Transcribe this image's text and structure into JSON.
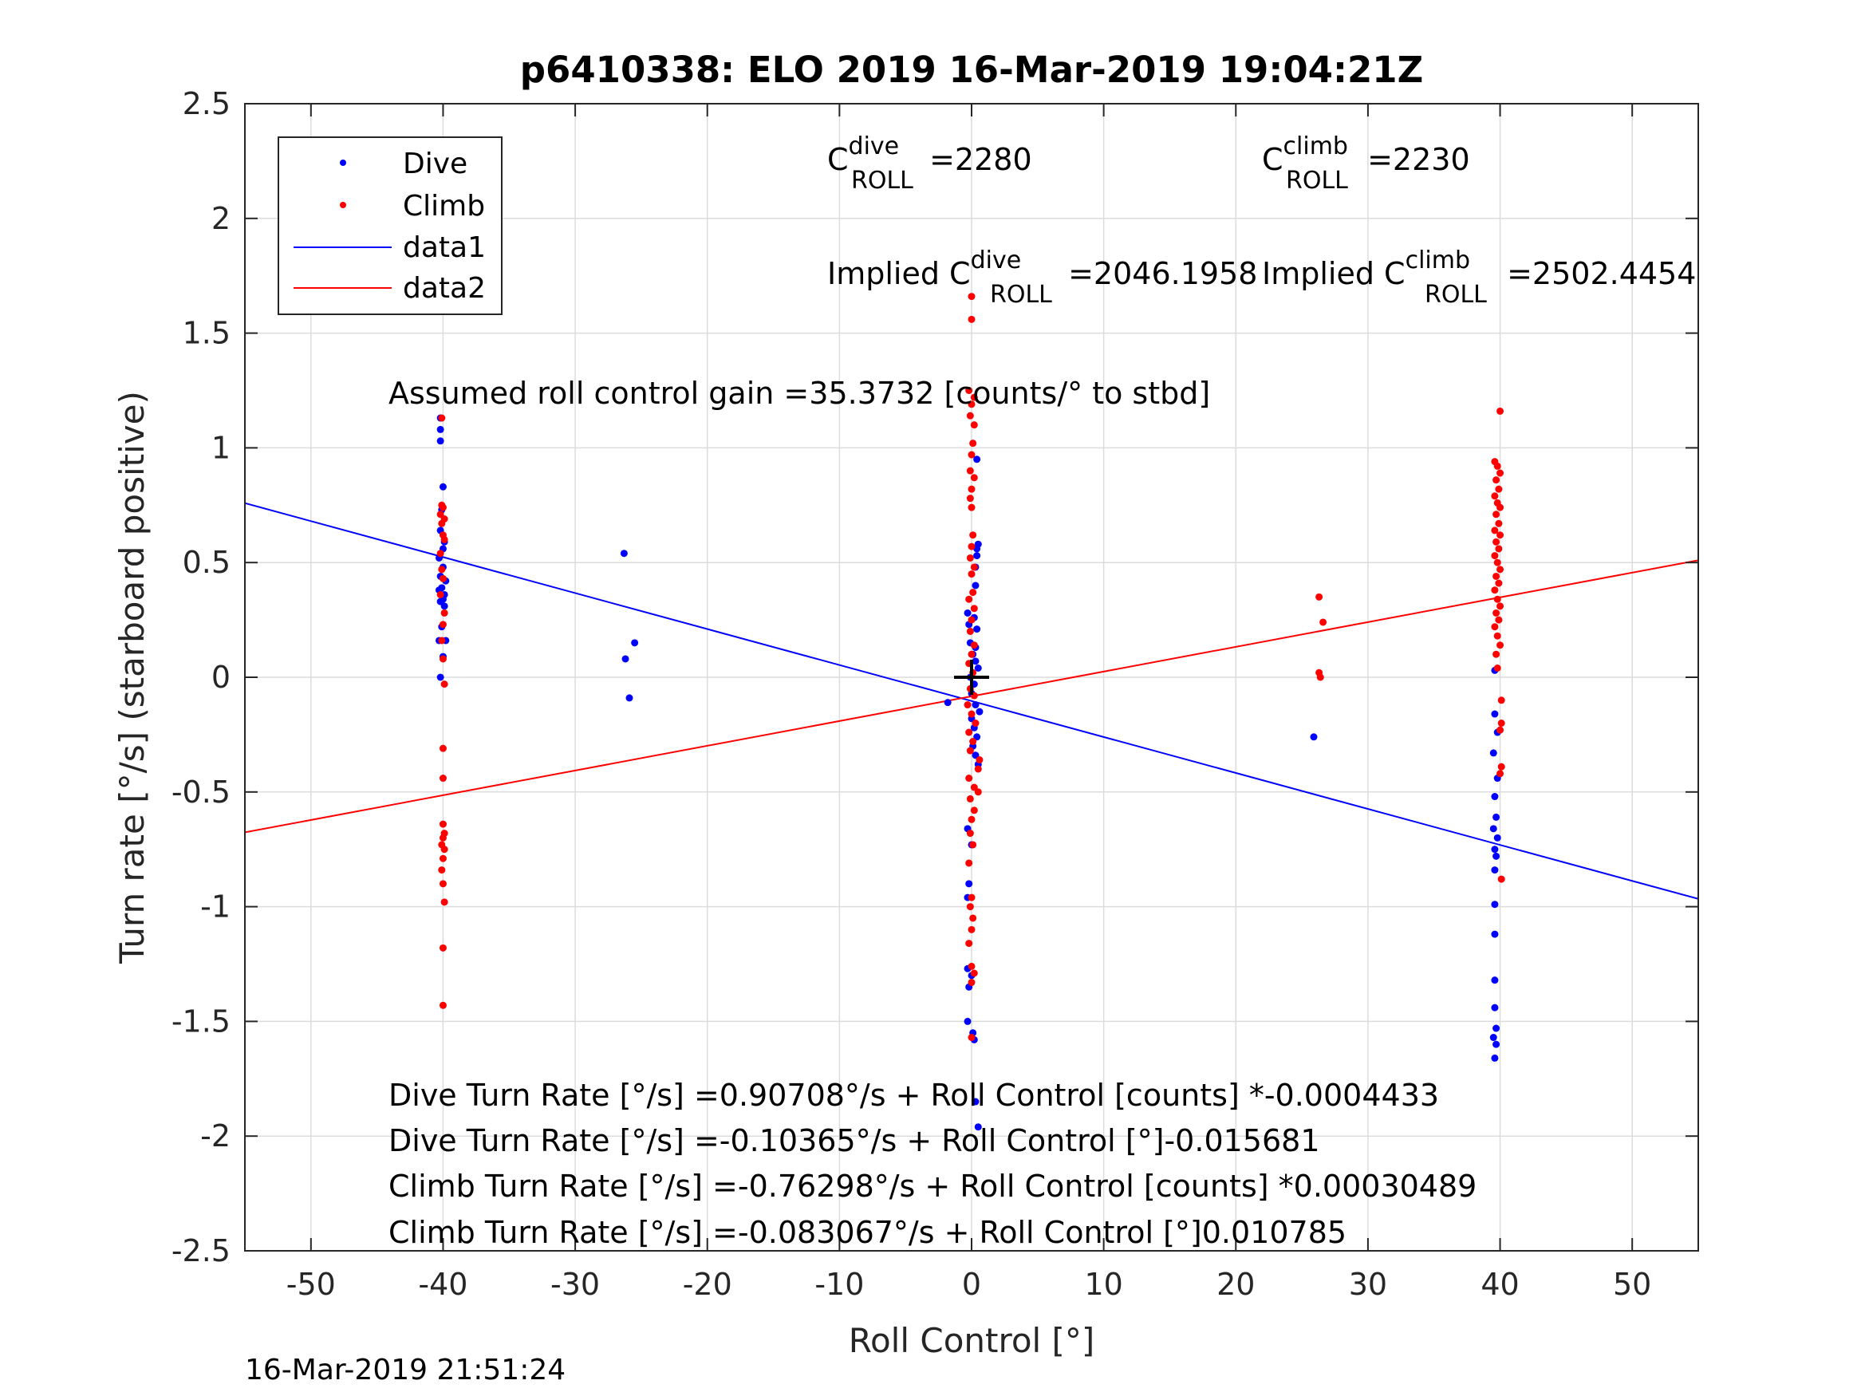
{
  "chart_data": {
    "type": "scatter",
    "title": "p6410338: ELO 2019 16-Mar-2019 19:04:21Z",
    "xlabel": "Roll Control [°]",
    "ylabel": "Turn rate [°/s] (starboard positive)",
    "xlim": [
      -55,
      55
    ],
    "ylim": [
      -2.5,
      2.5
    ],
    "x_ticks": [
      -50,
      -40,
      -30,
      -20,
      -10,
      0,
      10,
      20,
      30,
      40,
      50
    ],
    "y_ticks": [
      -2.5,
      -2,
      -1.5,
      -1,
      -0.5,
      0,
      0.5,
      1,
      1.5,
      2,
      2.5
    ],
    "grid": true,
    "legend_position": "top-left",
    "timestamp": "16-Mar-2019 21:51:24",
    "colors": {
      "dive": "#0000ff",
      "climb": "#ff0000",
      "origin_marker": "#000000",
      "axes": "#262626",
      "grid": "#dcdcdc"
    },
    "series": [
      {
        "name": "Dive",
        "kind": "points",
        "color": "#0000ff",
        "points": [
          [
            -40.2,
            1.13
          ],
          [
            -40.2,
            1.08
          ],
          [
            -40.2,
            1.03
          ],
          [
            -40.0,
            0.83
          ],
          [
            -40.1,
            0.73
          ],
          [
            -40.2,
            0.64
          ],
          [
            -39.9,
            0.59
          ],
          [
            -40.0,
            0.56
          ],
          [
            -40.3,
            0.52
          ],
          [
            -40.0,
            0.48
          ],
          [
            -40.2,
            0.44
          ],
          [
            -39.8,
            0.42
          ],
          [
            -40.1,
            0.39
          ],
          [
            -40.3,
            0.38
          ],
          [
            -39.9,
            0.36
          ],
          [
            -40.0,
            0.34
          ],
          [
            -40.2,
            0.33
          ],
          [
            -39.9,
            0.31
          ],
          [
            -40.1,
            0.22
          ],
          [
            -40.3,
            0.16
          ],
          [
            -39.8,
            0.16
          ],
          [
            -40.0,
            0.09
          ],
          [
            -40.2,
            0.0
          ],
          [
            -26.3,
            0.54
          ],
          [
            -25.5,
            0.15
          ],
          [
            -26.2,
            0.08
          ],
          [
            -25.9,
            -0.09
          ],
          [
            -1.8,
            -0.11
          ],
          [
            -0.3,
            0.28
          ],
          [
            0.2,
            0.26
          ],
          [
            -0.2,
            0.23
          ],
          [
            0.4,
            0.21
          ],
          [
            -0.1,
            0.15
          ],
          [
            0.3,
            0.13
          ],
          [
            0.1,
            0.1
          ],
          [
            0.3,
            0.07
          ],
          [
            0.5,
            0.04
          ],
          [
            -0.1,
            0.0
          ],
          [
            0.2,
            -0.03
          ],
          [
            0.0,
            -0.07
          ],
          [
            0.3,
            -0.12
          ],
          [
            0.6,
            -0.15
          ],
          [
            0.0,
            -0.18
          ],
          [
            0.2,
            -0.22
          ],
          [
            0.4,
            -0.26
          ],
          [
            0.1,
            -0.3
          ],
          [
            0.3,
            -0.34
          ],
          [
            0.5,
            -0.38
          ],
          [
            0.4,
            0.56
          ],
          [
            0.4,
            0.53
          ],
          [
            0.3,
            0.48
          ],
          [
            0.3,
            0.4
          ],
          [
            0.5,
            0.58
          ],
          [
            0.4,
            0.95
          ],
          [
            -0.3,
            -0.66
          ],
          [
            0.0,
            -0.73
          ],
          [
            -0.2,
            -0.9
          ],
          [
            -0.3,
            -0.96
          ],
          [
            -0.3,
            -1.27
          ],
          [
            0.0,
            -1.3
          ],
          [
            -0.2,
            -1.35
          ],
          [
            -0.3,
            -1.5
          ],
          [
            0.1,
            -1.55
          ],
          [
            0.5,
            -1.96
          ],
          [
            0.3,
            -1.85
          ],
          [
            0.2,
            -1.58
          ],
          [
            25.9,
            -0.26
          ],
          [
            39.6,
            0.03
          ],
          [
            39.6,
            -0.16
          ],
          [
            39.8,
            -0.24
          ],
          [
            39.5,
            -0.33
          ],
          [
            39.8,
            -0.44
          ],
          [
            39.6,
            -0.52
          ],
          [
            39.7,
            -0.61
          ],
          [
            39.5,
            -0.66
          ],
          [
            39.8,
            -0.7
          ],
          [
            39.6,
            -0.75
          ],
          [
            39.7,
            -0.78
          ],
          [
            39.6,
            -0.84
          ],
          [
            39.6,
            -0.99
          ],
          [
            39.6,
            -1.12
          ],
          [
            39.6,
            -1.32
          ],
          [
            39.6,
            -1.44
          ],
          [
            39.7,
            -1.53
          ],
          [
            39.5,
            -1.57
          ],
          [
            39.7,
            -1.6
          ],
          [
            39.6,
            -1.66
          ]
        ]
      },
      {
        "name": "Climb",
        "kind": "points",
        "color": "#ff0000",
        "points": [
          [
            -40.1,
            1.13
          ],
          [
            -40.1,
            0.75
          ],
          [
            -40.0,
            0.74
          ],
          [
            -40.2,
            0.71
          ],
          [
            -39.9,
            0.69
          ],
          [
            -40.1,
            0.67
          ],
          [
            -40.0,
            0.62
          ],
          [
            -39.9,
            0.6
          ],
          [
            -40.2,
            0.54
          ],
          [
            -40.1,
            0.47
          ],
          [
            -40.0,
            0.43
          ],
          [
            -40.2,
            0.36
          ],
          [
            -39.9,
            0.28
          ],
          [
            -40.0,
            0.23
          ],
          [
            -40.1,
            0.16
          ],
          [
            -40.0,
            0.08
          ],
          [
            -39.9,
            -0.03
          ],
          [
            -40.0,
            -0.31
          ],
          [
            -40.0,
            -0.44
          ],
          [
            -40.0,
            -0.64
          ],
          [
            -39.9,
            -0.68
          ],
          [
            -40.0,
            -0.7
          ],
          [
            -40.1,
            -0.73
          ],
          [
            -39.9,
            -0.75
          ],
          [
            -40.0,
            -0.79
          ],
          [
            -40.1,
            -0.84
          ],
          [
            -40.0,
            -0.9
          ],
          [
            -39.9,
            -0.98
          ],
          [
            -40.0,
            -1.18
          ],
          [
            -40.0,
            -1.43
          ],
          [
            0.0,
            1.66
          ],
          [
            0.0,
            1.56
          ],
          [
            -0.2,
            1.25
          ],
          [
            0.2,
            1.22
          ],
          [
            0.0,
            1.19
          ],
          [
            -0.1,
            1.14
          ],
          [
            0.2,
            1.1
          ],
          [
            0.1,
            1.02
          ],
          [
            0.0,
            0.97
          ],
          [
            -0.1,
            0.9
          ],
          [
            0.2,
            0.87
          ],
          [
            0.0,
            0.82
          ],
          [
            -0.1,
            0.78
          ],
          [
            0.0,
            0.74
          ],
          [
            0.1,
            0.62
          ],
          [
            0.0,
            0.57
          ],
          [
            -0.1,
            0.52
          ],
          [
            0.2,
            0.48
          ],
          [
            0.0,
            0.45
          ],
          [
            0.1,
            0.37
          ],
          [
            -0.2,
            0.34
          ],
          [
            0.2,
            0.3
          ],
          [
            0.0,
            0.25
          ],
          [
            -0.1,
            0.2
          ],
          [
            0.2,
            0.14
          ],
          [
            0.0,
            0.1
          ],
          [
            -0.2,
            0.06
          ],
          [
            0.1,
            0.02
          ],
          [
            -0.1,
            -0.05
          ],
          [
            0.2,
            -0.08
          ],
          [
            -0.3,
            -0.12
          ],
          [
            0.0,
            -0.16
          ],
          [
            0.3,
            -0.2
          ],
          [
            -0.2,
            -0.24
          ],
          [
            0.1,
            -0.28
          ],
          [
            -0.1,
            -0.32
          ],
          [
            0.6,
            -0.36
          ],
          [
            0.5,
            -0.4
          ],
          [
            -0.2,
            -0.44
          ],
          [
            0.2,
            -0.48
          ],
          [
            0.5,
            -0.5
          ],
          [
            -0.1,
            -0.53
          ],
          [
            0.2,
            -0.58
          ],
          [
            0.0,
            -0.62
          ],
          [
            -0.1,
            -0.68
          ],
          [
            0.1,
            -0.73
          ],
          [
            -0.2,
            -0.81
          ],
          [
            0.0,
            -0.96
          ],
          [
            -0.1,
            -1.0
          ],
          [
            0.1,
            -1.05
          ],
          [
            0.0,
            -1.1
          ],
          [
            -0.2,
            -1.16
          ],
          [
            0.0,
            -1.26
          ],
          [
            0.2,
            -1.29
          ],
          [
            0.0,
            -1.33
          ],
          [
            0.0,
            -1.57
          ],
          [
            26.3,
            0.35
          ],
          [
            26.6,
            0.24
          ],
          [
            26.3,
            0.02
          ],
          [
            26.4,
            0.0
          ],
          [
            40.0,
            1.16
          ],
          [
            39.6,
            0.94
          ],
          [
            39.8,
            0.92
          ],
          [
            40.0,
            0.89
          ],
          [
            39.7,
            0.86
          ],
          [
            39.9,
            0.82
          ],
          [
            39.6,
            0.79
          ],
          [
            39.8,
            0.76
          ],
          [
            40.0,
            0.74
          ],
          [
            39.7,
            0.71
          ],
          [
            39.9,
            0.67
          ],
          [
            39.6,
            0.64
          ],
          [
            40.0,
            0.62
          ],
          [
            39.7,
            0.59
          ],
          [
            39.9,
            0.56
          ],
          [
            39.6,
            0.53
          ],
          [
            39.8,
            0.5
          ],
          [
            40.0,
            0.47
          ],
          [
            39.7,
            0.44
          ],
          [
            39.9,
            0.41
          ],
          [
            39.6,
            0.38
          ],
          [
            39.8,
            0.34
          ],
          [
            40.0,
            0.31
          ],
          [
            39.7,
            0.28
          ],
          [
            39.9,
            0.25
          ],
          [
            39.6,
            0.22
          ],
          [
            39.8,
            0.18
          ],
          [
            40.0,
            0.14
          ],
          [
            39.7,
            0.1
          ],
          [
            39.8,
            0.04
          ],
          [
            40.1,
            -0.1
          ],
          [
            40.1,
            -0.2
          ],
          [
            40.0,
            -0.23
          ],
          [
            40.1,
            -0.39
          ],
          [
            40.0,
            -0.42
          ],
          [
            40.1,
            -0.88
          ]
        ]
      },
      {
        "name": "data1",
        "kind": "line",
        "color": "#0000ff",
        "points": [
          [
            -55,
            0.759
          ],
          [
            55,
            -0.966
          ]
        ]
      },
      {
        "name": "data2",
        "kind": "line",
        "color": "#ff0000",
        "points": [
          [
            -55,
            -0.676
          ],
          [
            55,
            0.51
          ]
        ]
      }
    ],
    "origin_marker": {
      "x": 0,
      "y": 0
    },
    "annotations": {
      "c_dive_main": "C",
      "c_dive_sup": "dive",
      "c_dive_sub": "ROLL",
      "c_dive_value": " =2280",
      "c_climb_main": "C",
      "c_climb_sup": "climb",
      "c_climb_sub": "ROLL",
      "c_climb_value": " =2230",
      "implied_dive_prefix": "Implied C",
      "implied_dive_sup": "dive",
      "implied_dive_sub": "ROLL",
      "implied_dive_value": " =2046.1958",
      "implied_climb_prefix": "Implied C",
      "implied_climb_sup": "climb",
      "implied_climb_sub": "ROLL",
      "implied_climb_value": " =2502.4454",
      "gain": "Assumed roll control gain =35.3732 [counts/° to stbd]",
      "eq1": "Dive Turn Rate [°/s] =0.90708°/s + Roll Control [counts] *-0.0004433",
      "eq2": "Dive Turn Rate [°/s] =-0.10365°/s + Roll Control [°]-0.015681",
      "eq3": "Climb Turn Rate [°/s] =-0.76298°/s + Roll Control [counts] *0.00030489",
      "eq4": "Climb Turn Rate [°/s] =-0.083067°/s + Roll Control [°]0.010785"
    }
  }
}
